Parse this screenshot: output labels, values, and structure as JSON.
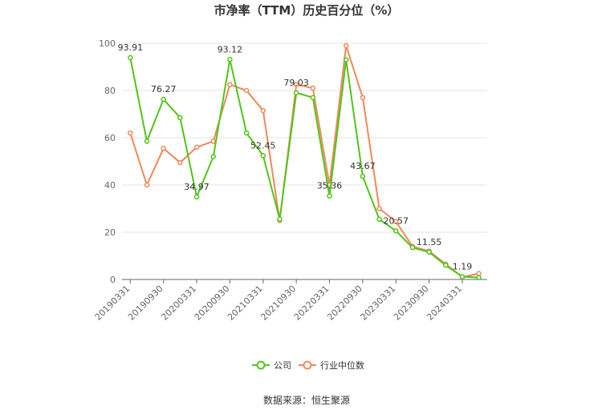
{
  "chart_data": {
    "type": "line",
    "title": "市净率（TTM）历史百分位（%）",
    "ylim": [
      0,
      100
    ],
    "yticks": [
      0,
      20,
      40,
      60,
      80,
      100
    ],
    "x_tick_labels": [
      "20190331",
      "20190930",
      "20200331",
      "20200930",
      "20210331",
      "20210930",
      "20220331",
      "20220930",
      "20230331",
      "20230930",
      "20240331"
    ],
    "x_points": 22,
    "grid": "horizontal",
    "legend_position": "bottom-center",
    "series": [
      {
        "name": "公司",
        "color": "#52c41a",
        "values": [
          93.91,
          58.5,
          76.27,
          68.5,
          34.97,
          52.0,
          93.12,
          62.0,
          52.45,
          25.5,
          79.03,
          77.0,
          35.36,
          93.0,
          43.67,
          25.5,
          20.57,
          13.5,
          11.55,
          6.0,
          1.19,
          0.8
        ],
        "labels": {
          "0": "93.91",
          "2": "76.27",
          "4": "34.97",
          "6": "93.12",
          "8": "52.45",
          "10": "79.03",
          "12": "35.36",
          "14": "43.67",
          "16": "20.57",
          "18": "11.55",
          "20": "1.19"
        }
      },
      {
        "name": "行业中位数",
        "color": "#f0885a",
        "values": [
          62.0,
          40.0,
          55.5,
          49.5,
          56.0,
          58.5,
          82.5,
          80.0,
          71.5,
          25.0,
          82.5,
          81.0,
          40.0,
          99.0,
          77.0,
          30.0,
          24.5,
          14.0,
          12.0,
          6.5,
          1.0,
          2.5
        ]
      }
    ]
  },
  "source_text": "数据来源：恒生聚源"
}
